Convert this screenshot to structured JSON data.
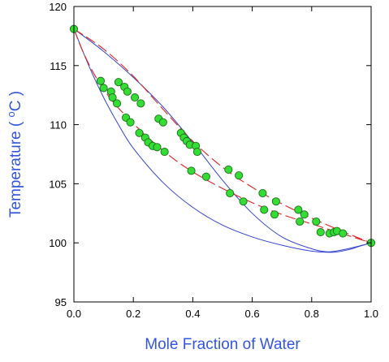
{
  "chart_data": {
    "type": "scatter",
    "title": "",
    "xlabel": "Mole Fraction of Water",
    "ylabel_main": "Temperature ( ",
    "ylabel_sup": "o",
    "ylabel_end": "C )",
    "xlim": [
      0,
      1
    ],
    "ylim": [
      95,
      120
    ],
    "x_ticks": [
      0.0,
      0.2,
      0.4,
      0.6,
      0.8,
      1.0
    ],
    "x_tick_labels": [
      "0.0",
      "0.2",
      "0.4",
      "0.6",
      "0.8",
      "1.0"
    ],
    "y_ticks": [
      95,
      100,
      105,
      110,
      115,
      120
    ],
    "y_tick_labels": [
      "95",
      "100",
      "105",
      "110",
      "115",
      "120"
    ],
    "grid": false,
    "colors": {
      "axis_title": "#3355dd",
      "model_curve": "#3344cc",
      "fit_curve": "#dd2222",
      "marker_fill": "#33dd33",
      "marker_edge": "#1d6b1d"
    },
    "series": [
      {
        "type": "scatter",
        "points": [
          [
            0.0,
            118.1
          ],
          [
            0.09,
            113.7
          ],
          [
            0.1,
            113.1
          ],
          [
            0.125,
            112.8
          ],
          [
            0.13,
            112.3
          ],
          [
            0.145,
            111.8
          ],
          [
            0.15,
            113.6
          ],
          [
            0.17,
            113.2
          ],
          [
            0.175,
            110.6
          ],
          [
            0.18,
            112.8
          ],
          [
            0.19,
            110.2
          ],
          [
            0.205,
            112.3
          ],
          [
            0.22,
            109.3
          ],
          [
            0.225,
            111.8
          ],
          [
            0.24,
            108.9
          ],
          [
            0.25,
            108.5
          ],
          [
            0.265,
            108.2
          ],
          [
            0.28,
            108.1
          ],
          [
            0.285,
            110.5
          ],
          [
            0.3,
            110.2
          ],
          [
            0.305,
            107.7
          ],
          [
            0.36,
            109.3
          ],
          [
            0.37,
            108.9
          ],
          [
            0.38,
            108.6
          ],
          [
            0.39,
            108.3
          ],
          [
            0.395,
            106.1
          ],
          [
            0.41,
            108.2
          ],
          [
            0.415,
            107.7
          ],
          [
            0.445,
            105.6
          ],
          [
            0.52,
            106.2
          ],
          [
            0.525,
            104.2
          ],
          [
            0.555,
            105.7
          ],
          [
            0.57,
            103.5
          ],
          [
            0.635,
            104.2
          ],
          [
            0.64,
            102.8
          ],
          [
            0.675,
            102.4
          ],
          [
            0.68,
            103.5
          ],
          [
            0.755,
            102.8
          ],
          [
            0.76,
            101.8
          ],
          [
            0.775,
            102.4
          ],
          [
            0.815,
            101.8
          ],
          [
            0.83,
            100.9
          ],
          [
            0.86,
            100.8
          ],
          [
            0.875,
            100.9
          ],
          [
            0.885,
            101.0
          ],
          [
            0.905,
            100.8
          ],
          [
            1.0,
            100.0
          ]
        ]
      },
      {
        "type": "line",
        "style": "solid",
        "points": [
          [
            0.0,
            118.1
          ],
          [
            0.05,
            115.0
          ],
          [
            0.1,
            112.3
          ],
          [
            0.15,
            110.0
          ],
          [
            0.2,
            108.0
          ],
          [
            0.3,
            105.1
          ],
          [
            0.4,
            103.0
          ],
          [
            0.5,
            101.5
          ],
          [
            0.6,
            100.5
          ],
          [
            0.7,
            99.8
          ],
          [
            0.8,
            99.3
          ],
          [
            0.87,
            99.2
          ],
          [
            0.92,
            99.4
          ],
          [
            0.96,
            99.7
          ],
          [
            1.0,
            100.0
          ]
        ]
      },
      {
        "type": "line",
        "style": "solid",
        "points": [
          [
            0.0,
            118.1
          ],
          [
            0.1,
            116.2
          ],
          [
            0.2,
            114.0
          ],
          [
            0.3,
            111.5
          ],
          [
            0.4,
            108.5
          ],
          [
            0.5,
            105.3
          ],
          [
            0.6,
            102.5
          ],
          [
            0.7,
            100.5
          ],
          [
            0.8,
            99.5
          ],
          [
            0.85,
            99.25
          ],
          [
            0.88,
            99.3
          ],
          [
            0.93,
            99.55
          ],
          [
            1.0,
            100.0
          ]
        ]
      },
      {
        "type": "line",
        "style": "dashed",
        "points": [
          [
            0.0,
            118.1
          ],
          [
            0.03,
            116.2
          ],
          [
            0.07,
            114.2
          ],
          [
            0.12,
            112.3
          ],
          [
            0.18,
            110.6
          ],
          [
            0.25,
            108.9
          ],
          [
            0.32,
            107.4
          ],
          [
            0.4,
            106.0
          ],
          [
            0.5,
            104.6
          ],
          [
            0.6,
            103.4
          ],
          [
            0.7,
            102.4
          ],
          [
            0.8,
            101.6
          ],
          [
            0.9,
            100.8
          ],
          [
            1.0,
            100.0
          ]
        ]
      },
      {
        "type": "line",
        "style": "dashed",
        "points": [
          [
            0.0,
            118.1
          ],
          [
            0.1,
            116.4
          ],
          [
            0.2,
            114.1
          ],
          [
            0.3,
            111.3
          ],
          [
            0.4,
            108.6
          ],
          [
            0.5,
            106.4
          ],
          [
            0.6,
            104.7
          ],
          [
            0.7,
            103.3
          ],
          [
            0.8,
            102.1
          ],
          [
            0.9,
            101.0
          ],
          [
            1.0,
            100.0
          ]
        ]
      }
    ]
  }
}
